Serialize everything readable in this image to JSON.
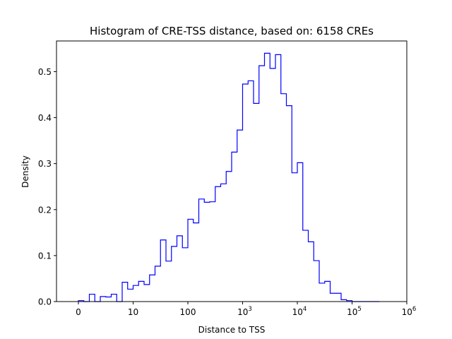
{
  "chart_data": {
    "type": "histogram-step",
    "title": "Histogram of CRE-TSS distance, based on: 6158 CREs",
    "xlabel": "Distance to TSS",
    "ylabel": "Density",
    "x_scale": "symlog",
    "x_linthresh": 10,
    "xlim": [
      -0.4,
      6
    ],
    "ylim": [
      0,
      0.5667
    ],
    "x_ticks": [
      {
        "label": "0",
        "pos": 0
      },
      {
        "label": "10",
        "pos": 1
      },
      {
        "label": "100",
        "pos": 2
      },
      {
        "label": "10",
        "sup": "3",
        "pos": 3
      },
      {
        "label": "10",
        "sup": "4",
        "pos": 4
      },
      {
        "label": "10",
        "sup": "5",
        "pos": 5
      },
      {
        "label": "10",
        "sup": "6",
        "pos": 6
      }
    ],
    "y_ticks": [
      0.0,
      0.1,
      0.2,
      0.3,
      0.4,
      0.5
    ],
    "y_tick_labels": [
      "0.0",
      "0.1",
      "0.2",
      "0.3",
      "0.4",
      "0.5"
    ],
    "bin_edges": [
      0,
      0.1,
      0.2,
      0.3,
      0.4,
      0.5,
      0.6,
      0.7,
      0.8,
      0.9,
      1.0,
      1.1,
      1.2,
      1.3,
      1.4,
      1.5,
      1.6,
      1.7,
      1.8,
      1.9,
      2.0,
      2.1,
      2.2,
      2.3,
      2.4,
      2.5,
      2.6,
      2.7,
      2.8,
      2.9,
      3.0,
      3.1,
      3.2,
      3.3,
      3.4,
      3.5,
      3.6,
      3.7,
      3.8,
      3.9,
      4.0,
      4.1,
      4.2,
      4.3,
      4.4,
      4.5,
      4.6,
      4.7,
      4.8,
      4.9,
      5.0,
      5.1,
      5.2,
      5.3,
      5.4,
      5.5
    ],
    "densities": [
      0.002,
      0.0,
      0.016,
      0.0,
      0.011,
      0.01,
      0.016,
      0.0,
      0.042,
      0.027,
      0.035,
      0.044,
      0.037,
      0.058,
      0.077,
      0.134,
      0.088,
      0.12,
      0.143,
      0.117,
      0.179,
      0.171,
      0.223,
      0.216,
      0.217,
      0.25,
      0.256,
      0.283,
      0.325,
      0.373,
      0.473,
      0.48,
      0.431,
      0.513,
      0.54,
      0.507,
      0.537,
      0.452,
      0.426,
      0.28,
      0.302,
      0.155,
      0.13,
      0.089,
      0.04,
      0.044,
      0.018,
      0.018,
      0.004,
      0.002,
      0.0,
      0.0,
      0.0,
      0.0,
      0.0
    ],
    "line_color": "#0000ff",
    "grid": false,
    "legend": "none"
  }
}
